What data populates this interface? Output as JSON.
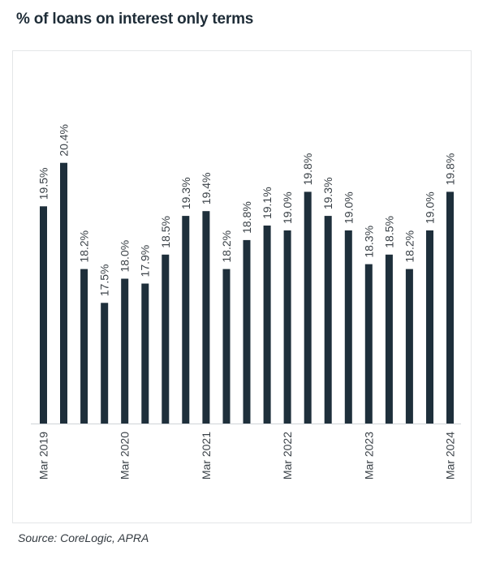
{
  "title": "% of loans on interest only terms",
  "source": "Source:  CoreLogic, APRA",
  "chart_data": {
    "type": "bar",
    "categories": [
      "Mar 2019",
      "",
      "",
      "",
      "Mar 2020",
      "",
      "",
      "",
      "Mar 2021",
      "",
      "",
      "",
      "Mar 2022",
      "",
      "",
      "",
      "Mar 2023",
      "",
      "",
      "",
      "Mar 2024"
    ],
    "values": [
      19.5,
      20.4,
      18.2,
      17.5,
      18.0,
      17.9,
      18.5,
      19.3,
      19.4,
      18.2,
      18.8,
      19.1,
      19.0,
      19.8,
      19.3,
      19.0,
      18.3,
      18.5,
      18.2,
      19.0,
      19.8
    ],
    "data_labels": [
      "19.5%",
      "20.4%",
      "18.2%",
      "17.5%",
      "18.0%",
      "17.9%",
      "18.5%",
      "19.3%",
      "19.4%",
      "18.2%",
      "18.8%",
      "19.1%",
      "19.0%",
      "19.8%",
      "19.3%",
      "19.0%",
      "18.3%",
      "18.5%",
      "18.2%",
      "19.0%",
      "19.8%"
    ],
    "bar_color": "#1e2f3b",
    "grid": false,
    "legend": "none"
  }
}
